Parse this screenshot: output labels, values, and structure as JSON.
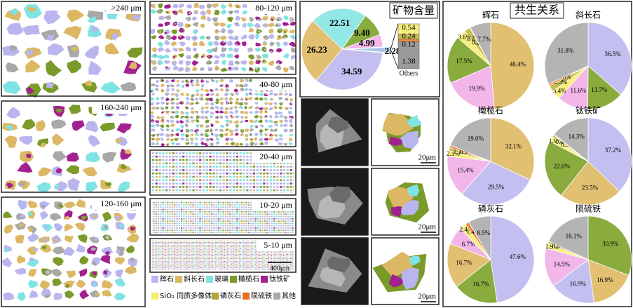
{
  "size_panels": [
    ">240 μm",
    "160-240 μm",
    "120-160 μm",
    "80-120 μm",
    "40-80 μm",
    "20-40 μm",
    "10-20 μm",
    "5-10 μm"
  ],
  "scale_bar": "400μm",
  "legend": [
    {
      "name": "辉石",
      "color": "#b9b5ee"
    },
    {
      "name": "斜长石",
      "color": "#dcb865"
    },
    {
      "name": "玻璃",
      "color": "#7fe3e3"
    },
    {
      "name": "橄榄石",
      "color": "#7a9a2a"
    },
    {
      "name": "钛铁矿",
      "color": "#a3218f"
    },
    {
      "name": "SiO₂ 同质多像体",
      "color": "#f5f06a"
    },
    {
      "name": "磷灰石",
      "color": "#b0a73c"
    },
    {
      "name": "陨硫铁",
      "color": "#e8701f"
    },
    {
      "name": "其他",
      "color": "#a8a8a8"
    }
  ],
  "micro_scale": [
    "20μm",
    "20μm",
    "20μm"
  ],
  "association_title": "共生关系",
  "chart_data": [
    {
      "type": "pie",
      "title": "矿物含量",
      "values": [
        34.59,
        26.23,
        22.51,
        9.4,
        4.99,
        2.28
      ],
      "value_labels": [
        "34.59",
        "26.23",
        "22.51",
        "9.40",
        "4.99",
        "2.28"
      ],
      "colors": [
        "#c3bff0",
        "#e1c072",
        "#93e8e6",
        "#8aab3d",
        "#f2b6e9",
        "#a9c7ea"
      ],
      "breakdown": {
        "values": [
          0.54,
          0.24,
          0.12,
          1.38
        ],
        "value_labels": [
          "0.54",
          "0.24",
          "0.12",
          "1.38"
        ],
        "colors": [
          "#f6ef7a",
          "#c5bd54",
          "#f08a3c",
          "#9a9a9a"
        ],
        "label": "Others"
      }
    },
    {
      "type": "pie",
      "title": "辉石",
      "values": [
        48.4,
        19.9,
        17.5,
        3.6,
        2.2,
        0.2,
        7.7
      ],
      "value_labels": [
        "48.4%",
        "19.9%",
        "17.5%",
        "3.6%",
        "2.2%",
        "0.2%",
        "7.7%"
      ],
      "colors": [
        "#e1c072",
        "#f2b6e9",
        "#8aab3d",
        "#f6ef7a",
        "#c5bd54",
        "#f08a3c",
        "#b4b4b4"
      ]
    },
    {
      "type": "pie",
      "title": "斜长石",
      "values": [
        36.5,
        13.7,
        11.6,
        3.4,
        2.3,
        0.8,
        31.8
      ],
      "value_labels": [
        "36.5%",
        "13.7%",
        "11.6%",
        "3.4%",
        "2.3%",
        "0.8%",
        "31.8%"
      ],
      "colors": [
        "#c3bff0",
        "#8aab3d",
        "#f2b6e9",
        "#f6ef7a",
        "#c5bd54",
        "#f08a3c",
        "#b4b4b4"
      ]
    },
    {
      "type": "pie",
      "title": "橄榄石",
      "values": [
        32.1,
        29.5,
        15.4,
        2.1,
        1.1,
        0.9,
        19.0
      ],
      "value_labels": [
        "32.1%",
        "29.5%",
        "15.4%",
        "2.1%",
        "1.1%",
        "0.9%",
        "19.0%"
      ],
      "colors": [
        "#e1c072",
        "#c3bff0",
        "#f2b6e9",
        "#f6ef7a",
        "#c5bd54",
        "#f08a3c",
        "#b4b4b4"
      ]
    },
    {
      "type": "pie",
      "title": "钛铁矿",
      "values": [
        37.2,
        23.5,
        22.0,
        1.9,
        0.8,
        0.3,
        14.3
      ],
      "value_labels": [
        "37.2%",
        "23.5%",
        "22.0%",
        "1.9%",
        "0.8%",
        "0.3%",
        "14.3%"
      ],
      "colors": [
        "#c3bff0",
        "#e1c072",
        "#8aab3d",
        "#f6ef7a",
        "#c5bd54",
        "#f08a3c",
        "#b4b4b4"
      ]
    },
    {
      "type": "pie",
      "title": "磷灰石",
      "values": [
        47.6,
        16.7,
        16.7,
        6.7,
        2.4,
        1.4,
        8.5
      ],
      "value_labels": [
        "47.6%",
        "16.7%",
        "16.7%",
        "6.7%",
        "2.4%",
        "1.4%",
        "8.5%"
      ],
      "colors": [
        "#c3bff0",
        "#8aab3d",
        "#e1c072",
        "#f2b6e9",
        "#f6ef7a",
        "#f08a3c",
        "#b4b4b4"
      ]
    },
    {
      "type": "pie",
      "title": "陨硫铁",
      "values": [
        30.9,
        16.9,
        16.9,
        14.5,
        1.9,
        0.8,
        18.1
      ],
      "value_labels": [
        "30.9%",
        "16.9%",
        "16.9%",
        "14.5%",
        "1.9%",
        "0.8%",
        "18.1%"
      ],
      "colors": [
        "#8aab3d",
        "#e1c072",
        "#c3bff0",
        "#f2b6e9",
        "#f6ef7a",
        "#c5bd54",
        "#b4b4b4"
      ]
    }
  ]
}
